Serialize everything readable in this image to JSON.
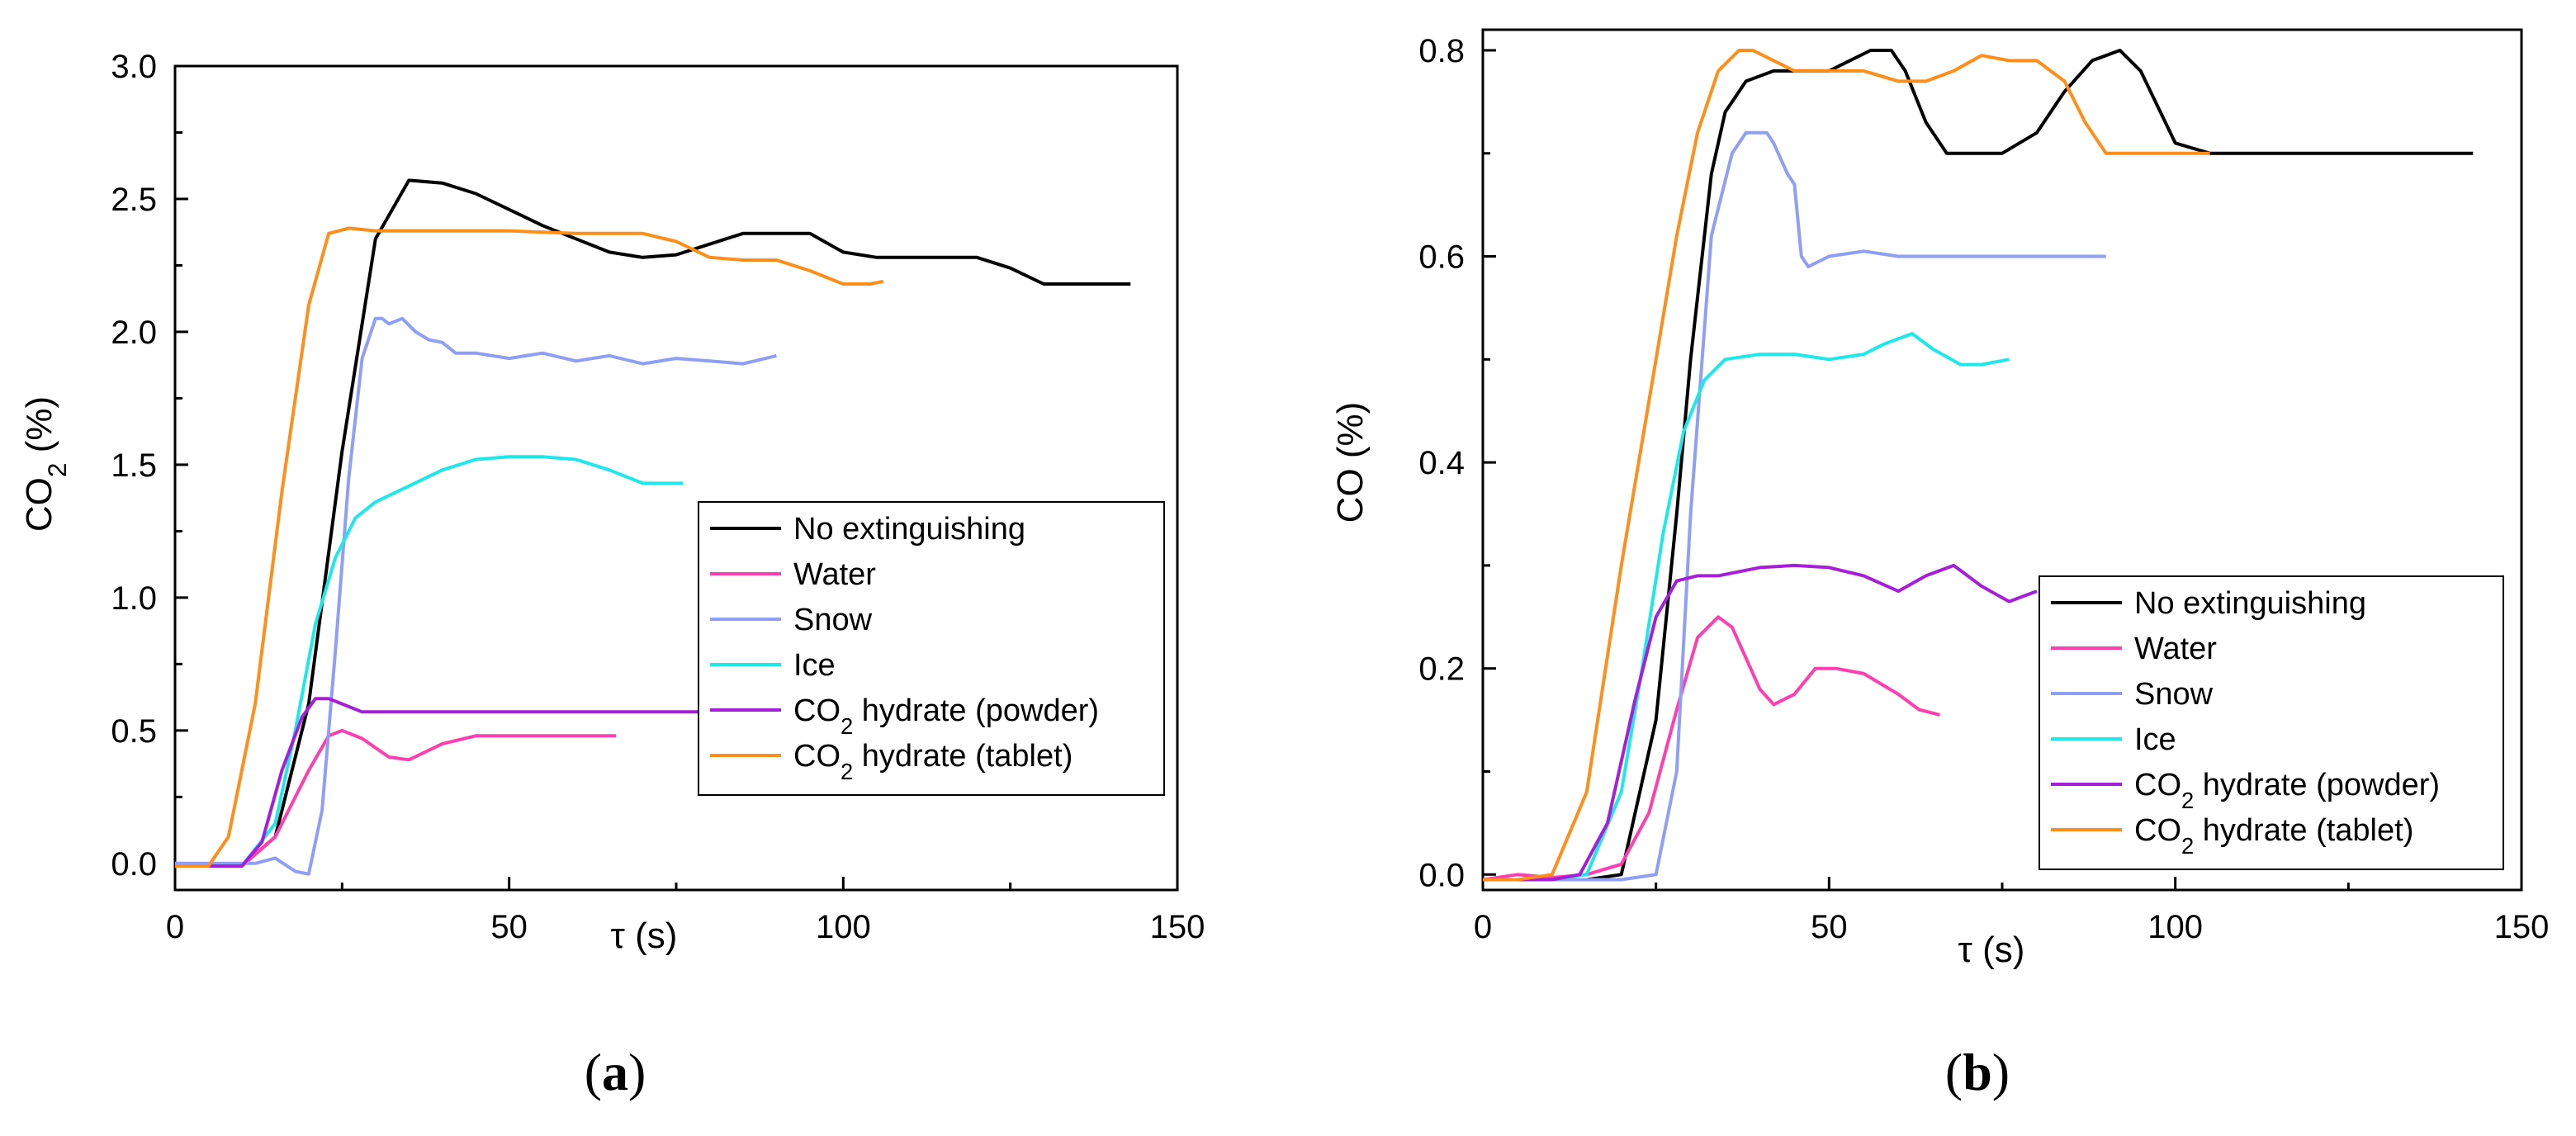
{
  "chart_data": [
    {
      "type": "line",
      "panel_label": "(a)",
      "xlabel": "τ (s)",
      "ylabel": "CO₂ (%)",
      "xlim": [
        0,
        150
      ],
      "ylim": [
        -0.1,
        3.0
      ],
      "xticks": [
        0,
        50,
        100,
        150
      ],
      "yticks": [
        0.0,
        0.5,
        1.0,
        1.5,
        2.0,
        2.5,
        3.0
      ],
      "xtick_labels": [
        "0",
        "50",
        "100",
        "150"
      ],
      "ytick_labels": [
        "0.0",
        "0.5",
        "1.0",
        "1.5",
        "2.0",
        "2.5",
        "3.0"
      ],
      "grid": false,
      "legend_position": "center-right",
      "series": [
        {
          "name": "No extinguishing",
          "color": "#000000",
          "x": [
            0,
            10,
            15,
            20,
            25,
            30,
            35,
            40,
            45,
            50,
            55,
            60,
            65,
            70,
            75,
            80,
            85,
            95,
            100,
            105,
            110,
            120,
            125,
            130,
            135,
            143
          ],
          "y": [
            -0.01,
            -0.01,
            0.1,
            0.6,
            1.55,
            2.35,
            2.57,
            2.56,
            2.52,
            2.46,
            2.4,
            2.35,
            2.3,
            2.28,
            2.29,
            2.33,
            2.37,
            2.37,
            2.3,
            2.28,
            2.28,
            2.28,
            2.24,
            2.18,
            2.18,
            2.18
          ]
        },
        {
          "name": "Water",
          "color": "#ff3fb0",
          "x": [
            0,
            10,
            15,
            20,
            23,
            25,
            28,
            32,
            35,
            40,
            45,
            50,
            55,
            60,
            66
          ],
          "y": [
            -0.01,
            -0.01,
            0.1,
            0.35,
            0.48,
            0.5,
            0.47,
            0.4,
            0.39,
            0.45,
            0.48,
            0.48,
            0.48,
            0.48,
            0.48
          ]
        },
        {
          "name": "Snow",
          "color": "#8e9ff5",
          "x": [
            0,
            12,
            15,
            18,
            20,
            22,
            24,
            26,
            28,
            30,
            31,
            32,
            34,
            36,
            38,
            40,
            42,
            45,
            50,
            55,
            60,
            65,
            70,
            75,
            80,
            85,
            90
          ],
          "y": [
            0.0,
            0.0,
            0.02,
            -0.03,
            -0.04,
            0.2,
            0.8,
            1.45,
            1.9,
            2.05,
            2.05,
            2.03,
            2.05,
            2.0,
            1.97,
            1.96,
            1.92,
            1.92,
            1.9,
            1.92,
            1.89,
            1.91,
            1.88,
            1.9,
            1.89,
            1.88,
            1.91
          ]
        },
        {
          "name": "Ice",
          "color": "#1ee8ea",
          "x": [
            0,
            10,
            15,
            18,
            21,
            24,
            27,
            30,
            35,
            40,
            45,
            50,
            55,
            60,
            65,
            70,
            76
          ],
          "y": [
            -0.01,
            -0.01,
            0.15,
            0.5,
            0.9,
            1.15,
            1.3,
            1.36,
            1.42,
            1.48,
            1.52,
            1.53,
            1.53,
            1.52,
            1.48,
            1.43,
            1.43
          ]
        },
        {
          "name": "CO₂ hydrate (powder)",
          "color": "#a51fd9",
          "x": [
            0,
            10,
            13,
            16,
            19,
            21,
            23,
            25,
            28,
            32,
            40,
            50,
            60,
            70,
            80,
            90,
            100
          ],
          "y": [
            -0.01,
            -0.01,
            0.08,
            0.35,
            0.55,
            0.62,
            0.62,
            0.6,
            0.57,
            0.57,
            0.57,
            0.57,
            0.57,
            0.57,
            0.57,
            0.57,
            0.57
          ]
        },
        {
          "name": "CO₂ hydrate (tablet)",
          "color": "#ff8e1a",
          "x": [
            0,
            5,
            8,
            12,
            16,
            20,
            23,
            26,
            30,
            35,
            40,
            50,
            60,
            70,
            75,
            80,
            85,
            90,
            95,
            100,
            104,
            106
          ],
          "y": [
            -0.01,
            -0.01,
            0.1,
            0.6,
            1.4,
            2.1,
            2.37,
            2.39,
            2.38,
            2.38,
            2.38,
            2.38,
            2.37,
            2.37,
            2.34,
            2.28,
            2.27,
            2.27,
            2.23,
            2.18,
            2.18,
            2.19
          ]
        }
      ]
    },
    {
      "type": "line",
      "panel_label": "(b)",
      "xlabel": "τ (s)",
      "ylabel": "CO (%)",
      "xlim": [
        0,
        150
      ],
      "ylim": [
        -0.015,
        0.82
      ],
      "xticks": [
        0,
        50,
        100,
        150
      ],
      "yticks": [
        0.0,
        0.2,
        0.4,
        0.6,
        0.8
      ],
      "xtick_labels": [
        "0",
        "50",
        "100",
        "150"
      ],
      "ytick_labels": [
        "0.0",
        "0.2",
        "0.4",
        "0.6",
        "0.8"
      ],
      "grid": false,
      "legend_position": "bottom-right",
      "series": [
        {
          "name": "No extinguishing",
          "color": "#000000",
          "x": [
            0,
            15,
            20,
            25,
            28,
            30,
            33,
            35,
            38,
            42,
            45,
            50,
            53,
            56,
            59,
            61,
            64,
            67,
            70,
            75,
            80,
            84,
            88,
            92,
            95,
            100,
            105,
            110,
            120,
            130,
            143
          ],
          "y": [
            -0.005,
            -0.005,
            0.0,
            0.15,
            0.35,
            0.5,
            0.68,
            0.74,
            0.77,
            0.78,
            0.78,
            0.78,
            0.79,
            0.8,
            0.8,
            0.78,
            0.73,
            0.7,
            0.7,
            0.7,
            0.72,
            0.76,
            0.79,
            0.8,
            0.78,
            0.71,
            0.7,
            0.7,
            0.7,
            0.7,
            0.7
          ]
        },
        {
          "name": "Water",
          "color": "#ff3fb0",
          "x": [
            0,
            5,
            10,
            15,
            20,
            24,
            28,
            31,
            34,
            36,
            38,
            40,
            42,
            45,
            48,
            51,
            55,
            60,
            63,
            66
          ],
          "y": [
            -0.005,
            0.0,
            -0.003,
            0.0,
            0.01,
            0.06,
            0.16,
            0.23,
            0.25,
            0.24,
            0.21,
            0.18,
            0.165,
            0.175,
            0.2,
            0.2,
            0.195,
            0.175,
            0.16,
            0.155
          ]
        },
        {
          "name": "Snow",
          "color": "#8e9ff5",
          "x": [
            0,
            10,
            20,
            25,
            28,
            30,
            33,
            36,
            38,
            40,
            41,
            42,
            44,
            45,
            46,
            47,
            50,
            55,
            60,
            70,
            80,
            90
          ],
          "y": [
            -0.005,
            -0.005,
            -0.005,
            0.0,
            0.1,
            0.35,
            0.62,
            0.7,
            0.72,
            0.72,
            0.72,
            0.71,
            0.68,
            0.67,
            0.6,
            0.59,
            0.6,
            0.605,
            0.6,
            0.6,
            0.6,
            0.6
          ]
        },
        {
          "name": "Ice",
          "color": "#1ee8ea",
          "x": [
            0,
            10,
            15,
            20,
            23,
            26,
            29,
            32,
            35,
            40,
            45,
            50,
            55,
            58,
            62,
            65,
            69,
            72,
            76
          ],
          "y": [
            -0.005,
            -0.005,
            0.0,
            0.08,
            0.2,
            0.33,
            0.43,
            0.48,
            0.5,
            0.505,
            0.505,
            0.5,
            0.505,
            0.515,
            0.525,
            0.51,
            0.495,
            0.495,
            0.5
          ]
        },
        {
          "name": "CO₂ hydrate (powder)",
          "color": "#a51fd9",
          "x": [
            0,
            10,
            14,
            18,
            22,
            25,
            28,
            31,
            34,
            40,
            45,
            50,
            55,
            60,
            64,
            68,
            72,
            76,
            80
          ],
          "y": [
            -0.005,
            -0.005,
            0.0,
            0.05,
            0.17,
            0.25,
            0.285,
            0.29,
            0.29,
            0.298,
            0.3,
            0.298,
            0.29,
            0.275,
            0.29,
            0.3,
            0.28,
            0.265,
            0.275
          ]
        },
        {
          "name": "CO₂ hydrate (tablet)",
          "color": "#ff8e1a",
          "x": [
            0,
            5,
            10,
            15,
            20,
            25,
            28,
            31,
            34,
            37,
            39,
            42,
            45,
            50,
            55,
            60,
            64,
            68,
            72,
            76,
            80,
            84,
            87,
            90,
            95,
            100,
            105
          ],
          "y": [
            -0.005,
            -0.005,
            0.0,
            0.08,
            0.3,
            0.5,
            0.62,
            0.72,
            0.78,
            0.8,
            0.8,
            0.79,
            0.78,
            0.78,
            0.78,
            0.77,
            0.77,
            0.78,
            0.795,
            0.79,
            0.79,
            0.77,
            0.73,
            0.7,
            0.7,
            0.7,
            0.7
          ]
        }
      ]
    }
  ]
}
